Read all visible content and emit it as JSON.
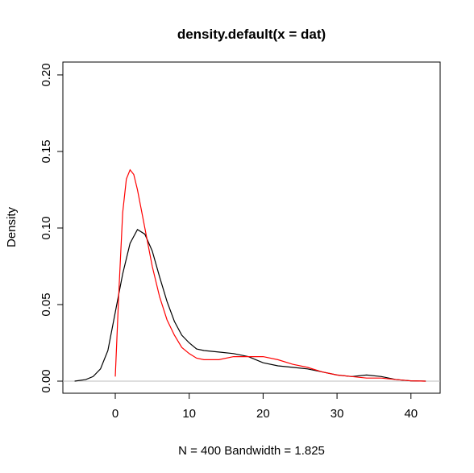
{
  "chart_data": {
    "type": "line",
    "title": "density.default(x = dat)",
    "xlabel": "N = 400   Bandwidth = 1.825",
    "ylabel": "Density",
    "series": [
      {
        "color": "#000000",
        "x": [
          -5.5,
          -4,
          -3,
          -2,
          -1,
          0,
          1,
          2,
          3,
          4,
          5,
          6,
          7,
          8,
          9,
          10,
          11,
          12,
          14,
          16,
          18,
          20,
          22,
          24,
          26,
          28,
          30,
          32,
          34,
          36,
          38,
          40,
          42
        ],
        "values": [
          0,
          0.001,
          0.003,
          0.008,
          0.02,
          0.045,
          0.07,
          0.09,
          0.099,
          0.096,
          0.085,
          0.068,
          0.052,
          0.039,
          0.03,
          0.025,
          0.021,
          0.02,
          0.019,
          0.018,
          0.016,
          0.012,
          0.01,
          0.009,
          0.008,
          0.006,
          0.004,
          0.003,
          0.004,
          0.003,
          0.001,
          0.0002,
          0
        ]
      },
      {
        "color": "#ff0000",
        "x": [
          0,
          0.5,
          1,
          1.5,
          2,
          2.5,
          3,
          4,
          5,
          6,
          7,
          8,
          9,
          10,
          11,
          12,
          14,
          16,
          18,
          20,
          22,
          24,
          26,
          28,
          30,
          32,
          34,
          36,
          38,
          40,
          42
        ],
        "values": [
          0.003,
          0.06,
          0.11,
          0.132,
          0.138,
          0.135,
          0.125,
          0.1,
          0.075,
          0.055,
          0.04,
          0.03,
          0.022,
          0.018,
          0.015,
          0.014,
          0.014,
          0.016,
          0.016,
          0.016,
          0.014,
          0.011,
          0.009,
          0.006,
          0.004,
          0.003,
          0.002,
          0.002,
          0.001,
          0.0002,
          0
        ]
      }
    ],
    "xlim": [
      -7.09,
      43.95
    ],
    "xticks": [
      0,
      10,
      20,
      30,
      40
    ],
    "ylim": [
      -0.0079,
      0.2084
    ],
    "yticks": [
      {
        "value": 0,
        "label": "0.00"
      },
      0.05,
      {
        "value": 0.1,
        "label": "0.10"
      },
      0.15,
      {
        "value": 0.2,
        "label": "0.20"
      }
    ],
    "reference_line": {
      "value": 0,
      "color": "#bebebe"
    }
  }
}
